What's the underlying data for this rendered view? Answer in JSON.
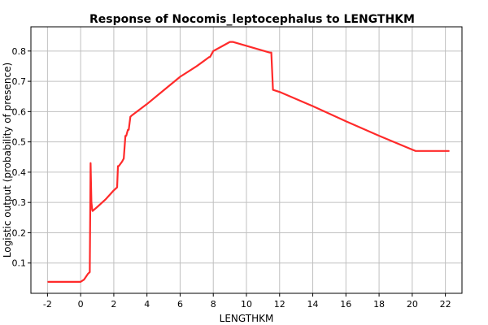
{
  "chart_data": {
    "type": "line",
    "title": "Response of Nocomis_leptocephalus to LENGTHKM",
    "xlabel": "LENGTHKM",
    "ylabel": "Logistic output (probability of presence)",
    "xlim": [
      -3,
      23
    ],
    "ylim": [
      0,
      0.88
    ],
    "x_ticks": [
      -2,
      0,
      2,
      4,
      6,
      8,
      10,
      12,
      14,
      16,
      18,
      20,
      22
    ],
    "y_ticks": [
      0.1,
      0.2,
      0.3,
      0.4,
      0.5,
      0.6,
      0.7,
      0.8
    ],
    "grid": true,
    "series": [
      {
        "color": "#ff2a2a",
        "x": [
          -1.95,
          0.0,
          0.2,
          0.45,
          0.55,
          0.6,
          0.65,
          0.7,
          0.72,
          1.0,
          1.5,
          2.0,
          2.2,
          2.25,
          2.3,
          2.5,
          2.6,
          2.7,
          2.75,
          2.85,
          2.9,
          3.0,
          3.1,
          4.0,
          5.0,
          6.0,
          7.0,
          7.75,
          7.8,
          7.9,
          8.0,
          8.5,
          9.0,
          9.2,
          11.4,
          11.5,
          11.6,
          12.0,
          14.0,
          16.0,
          18.0,
          20.2,
          22.2
        ],
        "y": [
          0.038,
          0.038,
          0.045,
          0.065,
          0.07,
          0.43,
          0.3,
          0.275,
          0.272,
          0.285,
          0.31,
          0.34,
          0.35,
          0.42,
          0.42,
          0.435,
          0.445,
          0.52,
          0.52,
          0.54,
          0.54,
          0.583,
          0.588,
          0.625,
          0.67,
          0.715,
          0.75,
          0.78,
          0.78,
          0.79,
          0.8,
          0.815,
          0.83,
          0.83,
          0.795,
          0.795,
          0.672,
          0.665,
          0.618,
          0.568,
          0.52,
          0.47,
          0.47
        ]
      }
    ]
  }
}
